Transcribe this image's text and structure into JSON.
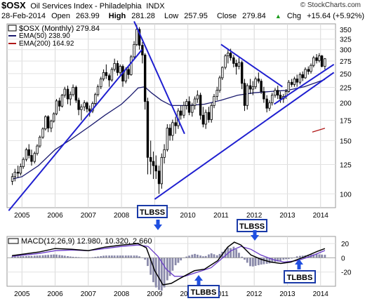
{
  "header": {
    "symbol": "$OSX",
    "name": "Oil Services Index - Philadelphia",
    "exchange": "INDX",
    "credit": "© StockCharts.com",
    "date": "28-Feb-2014",
    "open_label": "Open",
    "open": "263.99",
    "high_label": "High",
    "high": "281.28",
    "low_label": "Low",
    "low": "257.95",
    "close_label": "Close",
    "close": "279.84",
    "chg_label": "Chg",
    "chg": "+15.64 (+5.92%)",
    "chg_icon": "up-triangle-icon"
  },
  "legend": {
    "main": "$OSX (Monthly) 279.84",
    "ema50": "EMA(50) 238.90",
    "ema200": "EMA(200) 164.92"
  },
  "colors": {
    "price": "#000000",
    "ema50": "#1a1a6e",
    "ema200": "#b01818",
    "trendline": "#1f1fd0",
    "macd_line": "#000000",
    "signal_line": "#6a3cc8",
    "histogram": "#8a8aaa",
    "annotation_box": "#1a3aa8",
    "arrow": "#1f4fe0"
  },
  "chart_data": [
    {
      "type": "candlestick",
      "title": "$OSX (Monthly)",
      "x_ticks": [
        "2005",
        "2006",
        "2007",
        "2008",
        "2009",
        "2010",
        "2011",
        "2012",
        "2013",
        "2014"
      ],
      "y_ticks": [
        100,
        125,
        150,
        175,
        200,
        225,
        250,
        275,
        300,
        325,
        350
      ],
      "y_scale": "log",
      "ylim": [
        90,
        365
      ],
      "ohlc": [
        [
          2004.71,
          110,
          117,
          107,
          114
        ],
        [
          2004.79,
          114,
          121,
          110,
          118
        ],
        [
          2004.88,
          118,
          124,
          113,
          117
        ],
        [
          2004.96,
          117,
          126,
          115,
          123
        ],
        [
          2005.04,
          123,
          132,
          121,
          130
        ],
        [
          2005.13,
          130,
          142,
          128,
          140
        ],
        [
          2005.21,
          140,
          146,
          131,
          134
        ],
        [
          2005.29,
          134,
          140,
          124,
          128
        ],
        [
          2005.38,
          128,
          138,
          126,
          136
        ],
        [
          2005.46,
          136,
          146,
          134,
          144
        ],
        [
          2005.54,
          144,
          156,
          142,
          154
        ],
        [
          2005.63,
          154,
          166,
          152,
          164
        ],
        [
          2005.71,
          164,
          182,
          162,
          180
        ],
        [
          2005.79,
          180,
          182,
          160,
          165
        ],
        [
          2005.88,
          165,
          176,
          160,
          174
        ],
        [
          2005.96,
          174,
          186,
          172,
          184
        ],
        [
          2006.04,
          184,
          206,
          182,
          203
        ],
        [
          2006.13,
          203,
          208,
          188,
          195
        ],
        [
          2006.21,
          195,
          214,
          193,
          212
        ],
        [
          2006.29,
          212,
          226,
          208,
          222
        ],
        [
          2006.38,
          222,
          228,
          198,
          206
        ],
        [
          2006.46,
          206,
          218,
          196,
          213
        ],
        [
          2006.54,
          213,
          230,
          210,
          225
        ],
        [
          2006.63,
          225,
          228,
          200,
          204
        ],
        [
          2006.71,
          204,
          208,
          182,
          190
        ],
        [
          2006.79,
          190,
          198,
          175,
          194
        ],
        [
          2006.88,
          194,
          204,
          188,
          200
        ],
        [
          2006.96,
          200,
          202,
          186,
          191
        ],
        [
          2007.04,
          191,
          196,
          180,
          188
        ],
        [
          2007.13,
          188,
          202,
          185,
          199
        ],
        [
          2007.21,
          199,
          216,
          196,
          213
        ],
        [
          2007.29,
          213,
          230,
          210,
          226
        ],
        [
          2007.38,
          226,
          244,
          222,
          240
        ],
        [
          2007.46,
          240,
          258,
          236,
          252
        ],
        [
          2007.54,
          252,
          268,
          240,
          246
        ],
        [
          2007.63,
          246,
          250,
          226,
          238
        ],
        [
          2007.71,
          238,
          262,
          235,
          258
        ],
        [
          2007.79,
          258,
          280,
          254,
          270
        ],
        [
          2007.88,
          270,
          276,
          246,
          252
        ],
        [
          2007.96,
          252,
          268,
          248,
          264
        ],
        [
          2008.04,
          264,
          268,
          226,
          236
        ],
        [
          2008.13,
          236,
          262,
          232,
          258
        ],
        [
          2008.21,
          258,
          264,
          240,
          248
        ],
        [
          2008.29,
          248,
          288,
          246,
          284
        ],
        [
          2008.38,
          284,
          320,
          280,
          312
        ],
        [
          2008.46,
          312,
          362,
          308,
          350
        ],
        [
          2008.54,
          350,
          356,
          300,
          310
        ],
        [
          2008.63,
          310,
          318,
          270,
          288
        ],
        [
          2008.71,
          288,
          292,
          190,
          202
        ],
        [
          2008.79,
          202,
          208,
          116,
          132
        ],
        [
          2008.88,
          132,
          150,
          116,
          128
        ],
        [
          2008.96,
          128,
          138,
          112,
          124
        ],
        [
          2009.04,
          124,
          134,
          112,
          119
        ],
        [
          2009.13,
          119,
          124,
          100,
          108
        ],
        [
          2009.21,
          108,
          136,
          104,
          132
        ],
        [
          2009.29,
          132,
          146,
          126,
          140
        ],
        [
          2009.38,
          140,
          170,
          138,
          165
        ],
        [
          2009.46,
          165,
          170,
          150,
          156
        ],
        [
          2009.54,
          156,
          176,
          150,
          172
        ],
        [
          2009.63,
          172,
          180,
          158,
          168
        ],
        [
          2009.71,
          168,
          192,
          164,
          188
        ],
        [
          2009.79,
          188,
          196,
          176,
          182
        ],
        [
          2009.88,
          182,
          202,
          178,
          196
        ],
        [
          2009.96,
          196,
          206,
          190,
          202
        ],
        [
          2010.04,
          202,
          210,
          182,
          186
        ],
        [
          2010.13,
          186,
          200,
          180,
          196
        ],
        [
          2010.21,
          196,
          210,
          190,
          206
        ],
        [
          2010.29,
          206,
          220,
          200,
          212
        ],
        [
          2010.38,
          212,
          216,
          176,
          182
        ],
        [
          2010.46,
          182,
          194,
          166,
          170
        ],
        [
          2010.54,
          170,
          190,
          164,
          186
        ],
        [
          2010.63,
          186,
          194,
          172,
          176
        ],
        [
          2010.71,
          176,
          200,
          172,
          196
        ],
        [
          2010.79,
          196,
          214,
          192,
          210
        ],
        [
          2010.88,
          210,
          226,
          204,
          220
        ],
        [
          2010.96,
          220,
          246,
          216,
          242
        ],
        [
          2011.04,
          242,
          264,
          238,
          262
        ],
        [
          2011.13,
          262,
          290,
          258,
          286
        ],
        [
          2011.21,
          286,
          300,
          270,
          292
        ],
        [
          2011.29,
          292,
          302,
          276,
          282
        ],
        [
          2011.38,
          282,
          288,
          262,
          270
        ],
        [
          2011.46,
          270,
          278,
          248,
          264
        ],
        [
          2011.54,
          264,
          282,
          258,
          272
        ],
        [
          2011.63,
          272,
          276,
          222,
          232
        ],
        [
          2011.71,
          232,
          240,
          188,
          196
        ],
        [
          2011.79,
          196,
          232,
          190,
          228
        ],
        [
          2011.88,
          228,
          240,
          214,
          222
        ],
        [
          2011.96,
          222,
          236,
          212,
          226
        ],
        [
          2012.04,
          226,
          244,
          222,
          240
        ],
        [
          2012.13,
          240,
          252,
          232,
          236
        ],
        [
          2012.21,
          236,
          240,
          214,
          218
        ],
        [
          2012.29,
          218,
          226,
          200,
          206
        ],
        [
          2012.38,
          206,
          212,
          186,
          192
        ],
        [
          2012.46,
          192,
          204,
          188,
          200
        ],
        [
          2012.54,
          200,
          216,
          196,
          212
        ],
        [
          2012.63,
          212,
          224,
          208,
          220
        ],
        [
          2012.71,
          220,
          228,
          206,
          212
        ],
        [
          2012.79,
          212,
          218,
          200,
          206
        ],
        [
          2012.88,
          206,
          214,
          200,
          210
        ],
        [
          2012.96,
          210,
          222,
          206,
          218
        ],
        [
          2013.04,
          218,
          238,
          216,
          234
        ],
        [
          2013.13,
          234,
          240,
          226,
          230
        ],
        [
          2013.21,
          230,
          244,
          226,
          240
        ],
        [
          2013.29,
          240,
          248,
          226,
          234
        ],
        [
          2013.38,
          234,
          252,
          230,
          248
        ],
        [
          2013.46,
          248,
          254,
          236,
          242
        ],
        [
          2013.54,
          242,
          262,
          240,
          258
        ],
        [
          2013.63,
          258,
          264,
          248,
          254
        ],
        [
          2013.71,
          254,
          270,
          250,
          266
        ],
        [
          2013.79,
          266,
          286,
          262,
          282
        ],
        [
          2013.88,
          282,
          290,
          270,
          276
        ],
        [
          2013.96,
          276,
          292,
          272,
          286
        ],
        [
          2014.04,
          286,
          288,
          262,
          264
        ],
        [
          2014.13,
          263.99,
          281.28,
          257.95,
          279.84
        ]
      ],
      "ema50": [
        [
          2004.71,
          112
        ],
        [
          2005.0,
          114
        ],
        [
          2005.5,
          124
        ],
        [
          2006.0,
          140
        ],
        [
          2006.5,
          152
        ],
        [
          2007.0,
          166
        ],
        [
          2007.5,
          182
        ],
        [
          2008.0,
          198
        ],
        [
          2008.25,
          210
        ],
        [
          2008.5,
          224
        ],
        [
          2008.7,
          226
        ],
        [
          2008.9,
          216
        ],
        [
          2009.2,
          204
        ],
        [
          2009.5,
          196
        ],
        [
          2010.0,
          196
        ],
        [
          2010.5,
          198
        ],
        [
          2011.0,
          204
        ],
        [
          2011.5,
          212
        ],
        [
          2012.0,
          216
        ],
        [
          2012.5,
          218
        ],
        [
          2013.0,
          220
        ],
        [
          2013.5,
          226
        ],
        [
          2014.13,
          238.9
        ]
      ],
      "ema200_label_x": 2014.13,
      "ema200": [
        [
          2013.75,
          160
        ],
        [
          2014.13,
          164.92
        ]
      ],
      "trendlines": [
        [
          [
            2004.6,
            88
          ],
          [
            2008.62,
            300
          ]
        ],
        [
          [
            2008.38,
            372
          ],
          [
            2009.9,
            158
          ]
        ],
        [
          [
            2009.0,
            96
          ],
          [
            2014.4,
            252
          ]
        ],
        [
          [
            2011.0,
            312
          ],
          [
            2012.85,
            226
          ]
        ],
        [
          [
            2012.6,
            198
          ],
          [
            2014.4,
            268
          ]
        ]
      ]
    },
    {
      "type": "line",
      "title": "MACD(12,26,9) 12.980, 10.320, 2.660",
      "series": [
        {
          "name": "MACD",
          "values": [
            [
              2004.7,
              3
            ],
            [
              2005.5,
              8
            ],
            [
              2006.0,
              13
            ],
            [
              2006.5,
              12
            ],
            [
              2007.0,
              10
            ],
            [
              2007.5,
              15
            ],
            [
              2008.0,
              18
            ],
            [
              2008.5,
              20
            ],
            [
              2008.75,
              14
            ],
            [
              2009.0,
              -18
            ],
            [
              2009.25,
              -38
            ],
            [
              2009.5,
              -36
            ],
            [
              2009.8,
              -28
            ],
            [
              2010.2,
              -18
            ],
            [
              2010.5,
              -16
            ],
            [
              2010.9,
              -4
            ],
            [
              2011.2,
              15
            ],
            [
              2011.4,
              22
            ],
            [
              2011.6,
              18
            ],
            [
              2011.9,
              4
            ],
            [
              2012.2,
              -2
            ],
            [
              2012.5,
              -6
            ],
            [
              2012.8,
              -8
            ],
            [
              2013.1,
              -6
            ],
            [
              2013.5,
              1
            ],
            [
              2013.9,
              9
            ],
            [
              2014.13,
              12.98
            ]
          ]
        },
        {
          "name": "Signal",
          "values": [
            [
              2004.7,
              2
            ],
            [
              2005.5,
              6
            ],
            [
              2006.0,
              10
            ],
            [
              2006.5,
              11
            ],
            [
              2007.0,
              10
            ],
            [
              2007.5,
              13
            ],
            [
              2008.0,
              16
            ],
            [
              2008.5,
              18
            ],
            [
              2008.8,
              16
            ],
            [
              2009.1,
              2
            ],
            [
              2009.35,
              -16
            ],
            [
              2009.6,
              -26
            ],
            [
              2009.9,
              -26
            ],
            [
              2010.3,
              -20
            ],
            [
              2010.7,
              -14
            ],
            [
              2011.0,
              -2
            ],
            [
              2011.3,
              10
            ],
            [
              2011.6,
              16
            ],
            [
              2011.9,
              12
            ],
            [
              2012.2,
              4
            ],
            [
              2012.6,
              -3
            ],
            [
              2012.9,
              -6
            ],
            [
              2013.3,
              -4
            ],
            [
              2013.7,
              2
            ],
            [
              2014.13,
              10.32
            ]
          ]
        }
      ],
      "histogram": "MACD minus Signal",
      "y_ticks": [
        20,
        0,
        -20
      ],
      "ylim": [
        -40,
        30
      ],
      "x_ticks": [
        "2005",
        "2006",
        "2007",
        "2008",
        "2009",
        "2010",
        "2011",
        "2012",
        "2013",
        "2014"
      ]
    }
  ],
  "annotations": {
    "tlbss_main": "TLBSS",
    "tlbss_macd": "TLBSS",
    "tlbbs_left": "TLBBS",
    "tlbbs_right": "TLBBS"
  },
  "icons": {
    "arrow_up": "up-arrow-icon",
    "arrow_down": "down-arrow-icon"
  }
}
